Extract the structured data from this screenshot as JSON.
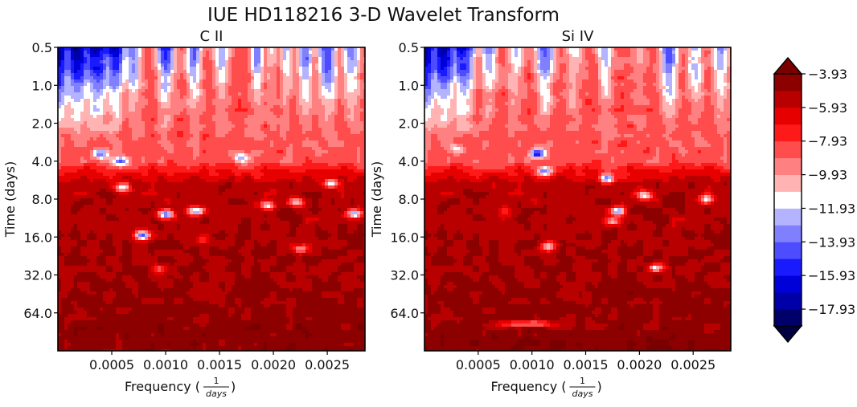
{
  "figure": {
    "title": "IUE HD118216 3-D Wavelet Transform"
  },
  "chart_data": [
    {
      "type": "heatmap",
      "title": "C II",
      "xlabel": "Frequency",
      "xlabel_fraction": {
        "numerator": "1",
        "denominator": "days"
      },
      "ylabel": "Time (days)",
      "xlim": [
        0,
        0.00285
      ],
      "x_ticks": [
        0.0005,
        0.001,
        0.0015,
        0.002,
        0.0025
      ],
      "x_tick_labels": [
        "0.0005",
        "0.0010",
        "0.0015",
        "0.0020",
        "0.0025"
      ],
      "y_scale": "log2",
      "ylim": [
        0.5,
        128
      ],
      "y_ticks": [
        0.5,
        1.0,
        2.0,
        4.0,
        8.0,
        16.0,
        32.0,
        64.0
      ],
      "y_tick_labels": [
        "0.5",
        "1.0",
        "2.0",
        "4.0",
        "8.0",
        "16.0",
        "32.0",
        "64.0"
      ],
      "value_range": [
        -18.93,
        -3.93
      ],
      "spikes": [
        {
          "freq": 0.0,
          "low": -18.5,
          "half_width": 0.00011
        },
        {
          "freq": 0.00018,
          "low": -18.0,
          "half_width": 0.00012
        },
        {
          "freq": 0.00036,
          "low": -17.5,
          "half_width": 0.00013
        },
        {
          "freq": 0.00052,
          "low": -16.8,
          "half_width": 0.0001
        },
        {
          "freq": 0.0007,
          "low": -14.5,
          "half_width": 8e-05
        },
        {
          "freq": 0.001,
          "low": -15.5,
          "half_width": 8e-05
        },
        {
          "freq": 0.00126,
          "low": -14.5,
          "half_width": 7e-05
        },
        {
          "freq": 0.00152,
          "low": -13.5,
          "half_width": 8e-05
        },
        {
          "freq": 0.00185,
          "low": -14.0,
          "half_width": 6e-05
        },
        {
          "freq": 0.00198,
          "low": -12.0,
          "half_width": 6e-05
        },
        {
          "freq": 0.00212,
          "low": -13.0,
          "half_width": 6e-05
        },
        {
          "freq": 0.0023,
          "low": -14.5,
          "half_width": 7e-05
        },
        {
          "freq": 0.0025,
          "low": -15.5,
          "half_width": 9e-05
        },
        {
          "freq": 0.00272,
          "low": -14.5,
          "half_width": 8e-05
        }
      ],
      "blobs": [
        {
          "freq": 0.0004,
          "time": 3.5,
          "value": -14.5
        },
        {
          "freq": 0.00058,
          "time": 4.0,
          "value": -14.0
        },
        {
          "freq": 0.001,
          "time": 10.5,
          "value": -15.0
        },
        {
          "freq": 0.00128,
          "time": 10.0,
          "value": -13.5
        },
        {
          "freq": 0.0006,
          "time": 6.5,
          "value": -11.5
        },
        {
          "freq": 0.0017,
          "time": 3.8,
          "value": -13.0
        },
        {
          "freq": 0.00195,
          "time": 9.0,
          "value": -11.5
        },
        {
          "freq": 0.00222,
          "time": 8.5,
          "value": -11.0
        },
        {
          "freq": 0.00253,
          "time": 6.0,
          "value": -12.0
        },
        {
          "freq": 0.00275,
          "time": 10.5,
          "value": -13.0
        },
        {
          "freq": 0.00078,
          "time": 15.5,
          "value": -14.0
        },
        {
          "freq": 0.00095,
          "time": 28.0,
          "value": -11.5
        },
        {
          "freq": 0.00225,
          "time": 20.0,
          "value": -10.5
        },
        {
          "freq": 0.00135,
          "time": 17.0,
          "value": -7.5
        }
      ],
      "bands": [
        {
          "time": 25.0,
          "value": -5.0
        },
        {
          "time": 90.0,
          "value": -4.2
        }
      ]
    },
    {
      "type": "heatmap",
      "title": "Si IV",
      "xlabel": "Frequency",
      "xlabel_fraction": {
        "numerator": "1",
        "denominator": "days"
      },
      "ylabel": "Time (days)",
      "xlim": [
        0,
        0.00285
      ],
      "x_ticks": [
        0.0005,
        0.001,
        0.0015,
        0.002,
        0.0025
      ],
      "x_tick_labels": [
        "0.0005",
        "0.0010",
        "0.0015",
        "0.0020",
        "0.0025"
      ],
      "y_scale": "log2",
      "ylim": [
        0.5,
        128
      ],
      "y_ticks": [
        0.5,
        1.0,
        2.0,
        4.0,
        8.0,
        16.0,
        32.0,
        64.0
      ],
      "y_tick_labels": [
        "0.5",
        "1.0",
        "2.0",
        "4.0",
        "8.0",
        "16.0",
        "32.0",
        "64.0"
      ],
      "value_range": [
        -18.93,
        -3.93
      ],
      "spikes": [
        {
          "freq": 0.0,
          "low": -18.5,
          "half_width": 0.00012
        },
        {
          "freq": 0.00018,
          "low": -17.5,
          "half_width": 0.00012
        },
        {
          "freq": 0.00036,
          "low": -16.5,
          "half_width": 0.00011
        },
        {
          "freq": 0.0006,
          "low": -13.5,
          "half_width": 8e-05
        },
        {
          "freq": 0.00085,
          "low": -13.0,
          "half_width": 8e-05
        },
        {
          "freq": 0.00112,
          "low": -14.5,
          "half_width": 9e-05
        },
        {
          "freq": 0.0014,
          "low": -12.5,
          "half_width": 8e-05
        },
        {
          "freq": 0.00168,
          "low": -13.5,
          "half_width": 7e-05
        },
        {
          "freq": 0.002,
          "low": -11.5,
          "half_width": 7e-05
        },
        {
          "freq": 0.00228,
          "low": -15.0,
          "half_width": 8e-05
        },
        {
          "freq": 0.00252,
          "low": -13.5,
          "half_width": 8e-05
        },
        {
          "freq": 0.00275,
          "low": -14.0,
          "half_width": 8e-05
        }
      ],
      "blobs": [
        {
          "freq": 0.00105,
          "time": 3.5,
          "value": -15.5
        },
        {
          "freq": 0.00112,
          "time": 4.8,
          "value": -14.0
        },
        {
          "freq": 0.0003,
          "time": 3.2,
          "value": -12.0
        },
        {
          "freq": 0.0017,
          "time": 5.5,
          "value": -13.5
        },
        {
          "freq": 0.0018,
          "time": 10.0,
          "value": -13.0
        },
        {
          "freq": 0.00205,
          "time": 7.5,
          "value": -11.5
        },
        {
          "freq": 0.00262,
          "time": 8.0,
          "value": -11.0
        },
        {
          "freq": 0.00175,
          "time": 12.0,
          "value": -11.0
        },
        {
          "freq": 0.00115,
          "time": 19.0,
          "value": -11.5
        },
        {
          "freq": 0.00215,
          "time": 28.0,
          "value": -11.0
        },
        {
          "freq": 0.00075,
          "time": 10.0,
          "value": -8.0
        }
      ],
      "bands": [
        {
          "time": 45.0,
          "value": -4.6
        },
        {
          "time": 110.0,
          "value": -4.0
        }
      ],
      "streak": {
        "freq": 0.00095,
        "time": 78.0,
        "value": -11.0
      }
    }
  ],
  "colorbar": {
    "levels": [
      -18.93,
      -17.93,
      -16.93,
      -15.93,
      -14.93,
      -13.93,
      -12.93,
      -11.93,
      -10.93,
      -9.93,
      -8.93,
      -7.93,
      -6.93,
      -5.93,
      -4.93,
      -3.93
    ],
    "tick_values": [
      -17.93,
      -15.93,
      -13.93,
      -11.93,
      -9.93,
      -7.93,
      -5.93,
      -3.93
    ],
    "tick_labels": [
      "−17.93",
      "−15.93",
      "−13.93",
      "−11.93",
      "−9.93",
      "−7.93",
      "−5.93",
      "−3.93"
    ],
    "colors": [
      "#00006a",
      "#0000a8",
      "#0000d8",
      "#1a1aff",
      "#4d4dff",
      "#8080ff",
      "#b3b3ff",
      "#ffffff",
      "#ffb3b3",
      "#ff8080",
      "#ff4d4d",
      "#ff1a1a",
      "#e60000",
      "#b80000",
      "#8c0000"
    ],
    "under_color": "#000040",
    "over_color": "#7a0000",
    "extend": "both"
  }
}
